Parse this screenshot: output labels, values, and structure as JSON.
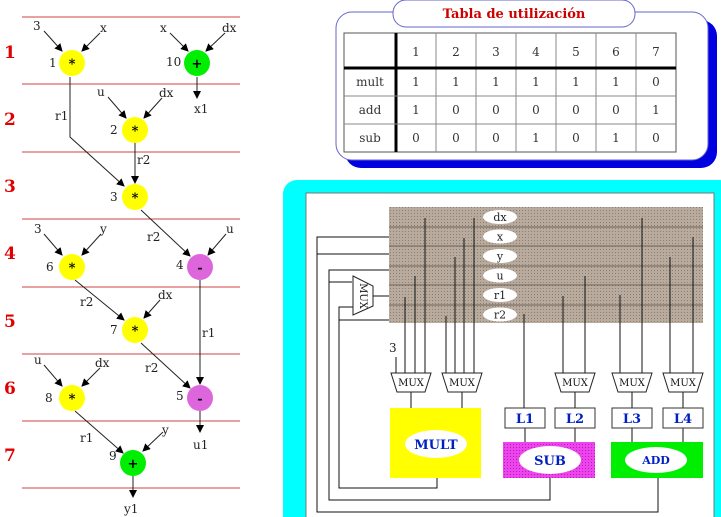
{
  "colors": {
    "mult": "#ffff00",
    "add": "#00ee00",
    "sub": "#dd66dd",
    "step": "#e00000",
    "cyan": "#00ffff",
    "shadow": "#0000e0",
    "bank": "#b0a498"
  },
  "dfg": {
    "steps": [
      "1",
      "2",
      "3",
      "4",
      "5",
      "6",
      "7"
    ],
    "nodes": [
      {
        "id": "1",
        "op": "*"
      },
      {
        "id": "10",
        "op": "+"
      },
      {
        "id": "2",
        "op": "*"
      },
      {
        "id": "3",
        "op": "*"
      },
      {
        "id": "6",
        "op": "*"
      },
      {
        "id": "4",
        "op": "-"
      },
      {
        "id": "7",
        "op": "*"
      },
      {
        "id": "8",
        "op": "*"
      },
      {
        "id": "5",
        "op": "-"
      },
      {
        "id": "9",
        "op": "+"
      }
    ],
    "edge_labels": {
      "n1_in_a": "3",
      "n1_in_b": "x",
      "n10_in_a": "x",
      "n10_in_b": "dx",
      "n10_out": "x1",
      "n2_in_a": "u",
      "n2_in_b": "dx",
      "r1_a": "r1",
      "r2_a": "r2",
      "r2_b": "r2",
      "n4_in_b": "u",
      "n6_in_a": "3",
      "n6_in_b": "y",
      "r2_c": "r2",
      "n7_in_b": "dx",
      "r1_b": "r1",
      "n8_in_a": "u",
      "n8_in_b": "dx",
      "r2_d": "r2",
      "n5_out": "u1",
      "r1_c": "r1",
      "n9_in_b": "y",
      "n9_out": "y1"
    }
  },
  "table": {
    "title": "Tabla de utilización",
    "columns": [
      "",
      "1",
      "2",
      "3",
      "4",
      "5",
      "6",
      "7"
    ],
    "rows": [
      {
        "label": "mult",
        "values": [
          "1",
          "1",
          "1",
          "1",
          "1",
          "1",
          "0"
        ]
      },
      {
        "label": "add",
        "values": [
          "1",
          "0",
          "0",
          "0",
          "0",
          "0",
          "1"
        ]
      },
      {
        "label": "sub",
        "values": [
          "0",
          "0",
          "0",
          "1",
          "0",
          "1",
          "0"
        ]
      }
    ]
  },
  "datapath": {
    "registers": [
      "dx",
      "x",
      "y",
      "u",
      "r1",
      "r2"
    ],
    "mux_label": "MUX",
    "const_input": "3",
    "latches": [
      "L1",
      "L2",
      "L3",
      "L4"
    ],
    "units": {
      "mult": "MULT",
      "sub": "SUB",
      "add": "ADD"
    }
  }
}
